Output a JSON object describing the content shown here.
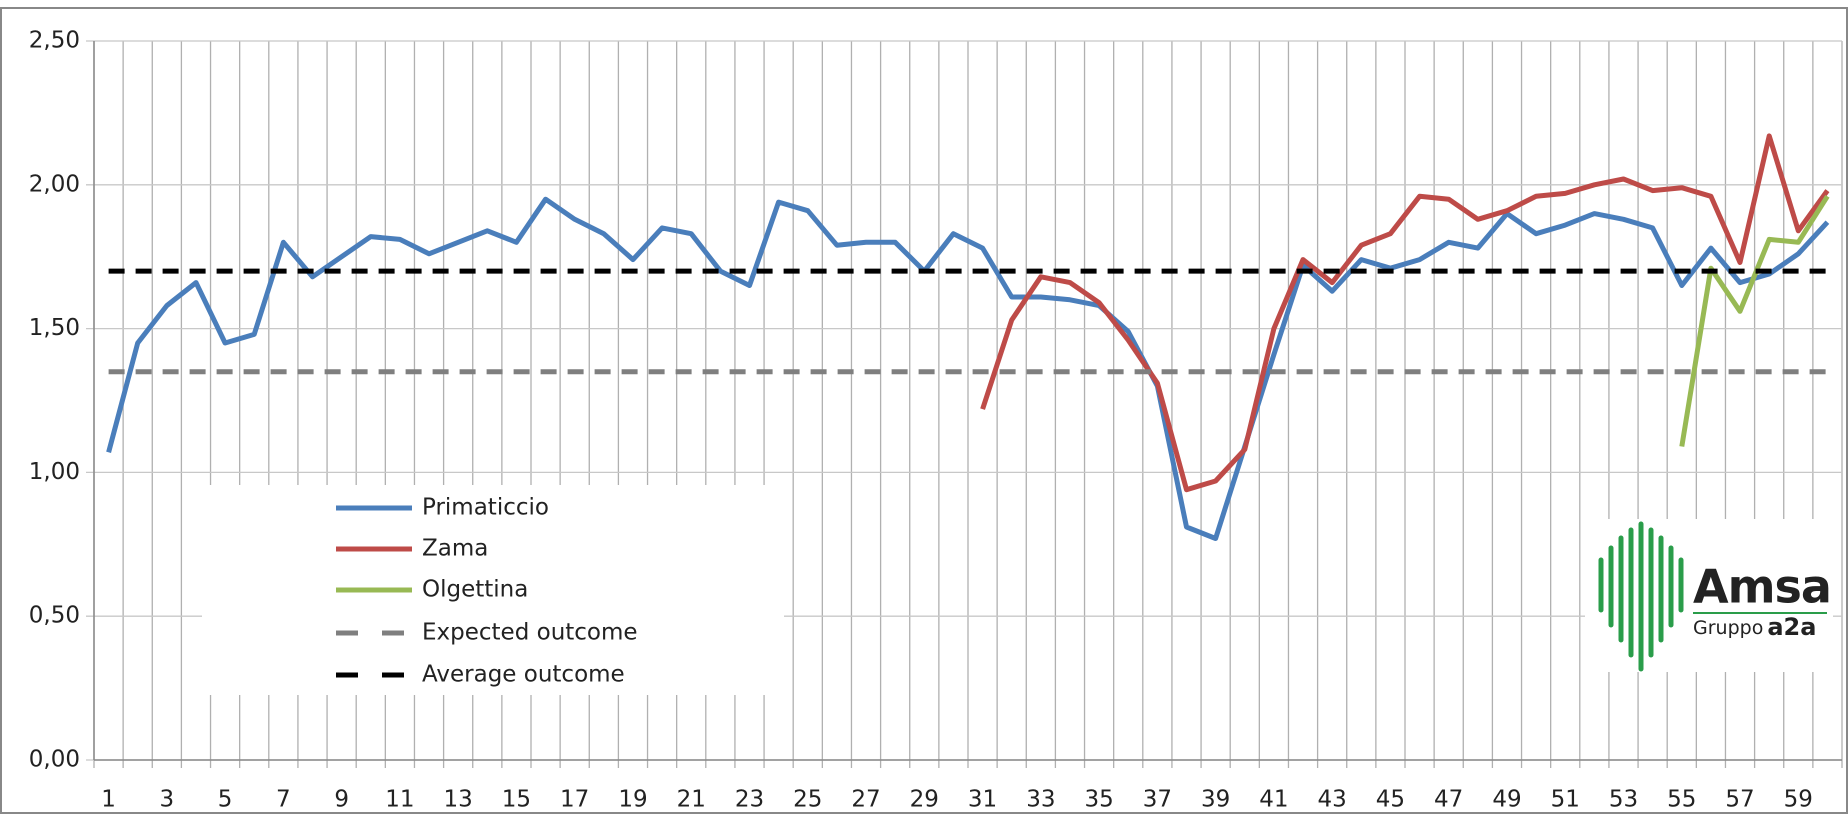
{
  "chart_data": {
    "type": "line",
    "categories": [
      "1",
      null,
      "3",
      null,
      "5",
      null,
      "7",
      null,
      "9",
      null,
      "11",
      null,
      "13",
      null,
      "15",
      null,
      "17",
      null,
      "19",
      null,
      "21",
      null,
      "23",
      null,
      "25",
      null,
      "27",
      null,
      "29",
      null,
      "31",
      null,
      "33",
      null,
      "35",
      null,
      "37",
      null,
      "39",
      null,
      "41",
      null,
      "43",
      null,
      "45",
      null,
      "47",
      null,
      "49",
      null,
      "51",
      null,
      "53",
      null,
      "55",
      null,
      "57",
      null,
      "59",
      null
    ],
    "series": [
      {
        "name": "Primaticcio",
        "color": "#4a7ebb",
        "dashed": false,
        "values": [
          1.07,
          1.45,
          1.58,
          1.66,
          1.45,
          1.48,
          1.8,
          1.68,
          1.75,
          1.82,
          1.81,
          1.76,
          1.8,
          1.84,
          1.8,
          1.95,
          1.88,
          1.83,
          1.74,
          1.85,
          1.83,
          1.7,
          1.65,
          1.94,
          1.91,
          1.79,
          1.8,
          1.8,
          1.7,
          1.83,
          1.78,
          1.61,
          1.61,
          1.6,
          1.58,
          1.49,
          1.3,
          0.81,
          0.77,
          1.09,
          1.41,
          1.72,
          1.63,
          1.74,
          1.71,
          1.74,
          1.8,
          1.78,
          1.9,
          1.83,
          1.86,
          1.9,
          1.88,
          1.85,
          1.65,
          1.78,
          1.66,
          1.69,
          1.76,
          1.87
        ]
      },
      {
        "name": "Zama",
        "color": "#be4b48",
        "dashed": false,
        "values": [
          null,
          null,
          null,
          null,
          null,
          null,
          null,
          null,
          null,
          null,
          null,
          null,
          null,
          null,
          null,
          null,
          null,
          null,
          null,
          null,
          null,
          null,
          null,
          null,
          null,
          null,
          null,
          null,
          null,
          null,
          1.22,
          1.53,
          1.68,
          1.66,
          1.59,
          1.46,
          1.31,
          0.94,
          0.97,
          1.08,
          1.5,
          1.74,
          1.66,
          1.79,
          1.83,
          1.96,
          1.95,
          1.88,
          1.91,
          1.96,
          1.97,
          2.0,
          2.02,
          1.98,
          1.99,
          1.96,
          1.73,
          2.17,
          1.84,
          1.98
        ]
      },
      {
        "name": "Olgettina",
        "color": "#98b954",
        "dashed": false,
        "values": [
          null,
          null,
          null,
          null,
          null,
          null,
          null,
          null,
          null,
          null,
          null,
          null,
          null,
          null,
          null,
          null,
          null,
          null,
          null,
          null,
          null,
          null,
          null,
          null,
          null,
          null,
          null,
          null,
          null,
          null,
          null,
          null,
          null,
          null,
          null,
          null,
          null,
          null,
          null,
          null,
          null,
          null,
          null,
          null,
          null,
          null,
          null,
          null,
          null,
          null,
          null,
          null,
          null,
          null,
          1.09,
          1.71,
          1.56,
          1.81,
          1.8,
          1.96
        ]
      },
      {
        "name": "Expected outcome",
        "color": "#7f7f7f",
        "dashed": true,
        "values": [
          1.35,
          1.35,
          1.35,
          1.35,
          1.35,
          1.35,
          1.35,
          1.35,
          1.35,
          1.35,
          1.35,
          1.35,
          1.35,
          1.35,
          1.35,
          1.35,
          1.35,
          1.35,
          1.35,
          1.35,
          1.35,
          1.35,
          1.35,
          1.35,
          1.35,
          1.35,
          1.35,
          1.35,
          1.35,
          1.35,
          1.35,
          1.35,
          1.35,
          1.35,
          1.35,
          1.35,
          1.35,
          1.35,
          1.35,
          1.35,
          1.35,
          1.35,
          1.35,
          1.35,
          1.35,
          1.35,
          1.35,
          1.35,
          1.35,
          1.35,
          1.35,
          1.35,
          1.35,
          1.35,
          1.35,
          1.35,
          1.35,
          1.35,
          1.35,
          1.35
        ]
      },
      {
        "name": "Average outcome",
        "color": "#000000",
        "dashed": true,
        "values": [
          1.7,
          1.7,
          1.7,
          1.7,
          1.7,
          1.7,
          1.7,
          1.7,
          1.7,
          1.7,
          1.7,
          1.7,
          1.7,
          1.7,
          1.7,
          1.7,
          1.7,
          1.7,
          1.7,
          1.7,
          1.7,
          1.7,
          1.7,
          1.7,
          1.7,
          1.7,
          1.7,
          1.7,
          1.7,
          1.7,
          1.7,
          1.7,
          1.7,
          1.7,
          1.7,
          1.7,
          1.7,
          1.7,
          1.7,
          1.7,
          1.7,
          1.7,
          1.7,
          1.7,
          1.7,
          1.7,
          1.7,
          1.7,
          1.7,
          1.7,
          1.7,
          1.7,
          1.7,
          1.7,
          1.7,
          1.7,
          1.7,
          1.7,
          1.7,
          1.7
        ]
      }
    ],
    "ylim": [
      0,
      2.5
    ],
    "yticks": [
      {
        "value": 0,
        "label": "0,00"
      },
      {
        "value": 0.5,
        "label": "0,50"
      },
      {
        "value": 1,
        "label": "1,00"
      },
      {
        "value": 1.5,
        "label": "1,50"
      },
      {
        "value": 2,
        "label": "2,00"
      },
      {
        "value": 2.5,
        "label": "2,50"
      }
    ],
    "grid": true
  },
  "logo": {
    "name": "Amsa",
    "group": "Gruppo",
    "group_brand": "a2a"
  }
}
